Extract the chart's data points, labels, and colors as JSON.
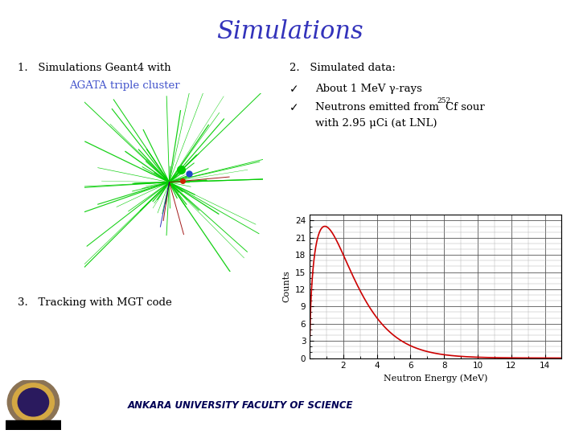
{
  "title": "Simulations",
  "title_color": "#3333bb",
  "title_fontsize": 22,
  "bg_color": "#ffffff",
  "item1_line1": "1.   Simulations Geant4 with",
  "item1_line2": "AGATA triple cluster",
  "item1_line2_color": "#4455cc",
  "item2_label": "2.   Simulated data:",
  "bullet1": "About 1 MeV γ-rays",
  "bullet2_pre": "Neutrons emitted from ",
  "bullet2_super": "252",
  "bullet2_post": "Cf sour",
  "bullet3": "with 2.95 μCi (at LNL)",
  "item3_label": "3.   Tracking with MGT code",
  "plot_xlabel": "Neutron Energy (MeV)",
  "plot_ylabel": "Counts",
  "plot_yticks": [
    0,
    3,
    6,
    9,
    12,
    15,
    18,
    21,
    24
  ],
  "plot_xticks": [
    2,
    4,
    6,
    8,
    10,
    12,
    14
  ],
  "plot_xlim": [
    0,
    15
  ],
  "plot_ylim": [
    0,
    25
  ],
  "curve_color": "#cc0000",
  "footer_text": "ANKARA UNIVERSITY FACULTY OF SCIENCE",
  "footer_color": "#000055",
  "checkmark": "✓",
  "n_green_lines": 40,
  "n_red_lines": 3
}
